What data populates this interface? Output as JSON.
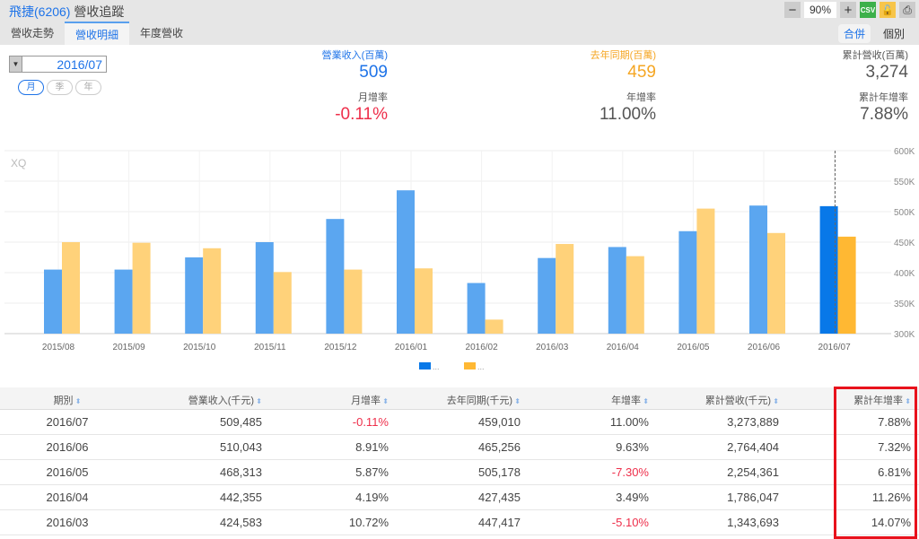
{
  "header": {
    "company": "飛捷(6206)",
    "title": "營收追蹤",
    "zoom": "90%",
    "csv": "CSV"
  },
  "tabs": [
    {
      "label": "營收走勢"
    },
    {
      "label": "營收明細"
    },
    {
      "label": "年度營收"
    }
  ],
  "toggle": {
    "merged": "合併",
    "individual": "個別"
  },
  "date": "2016/07",
  "periods": [
    "月",
    "季",
    "年"
  ],
  "stats": {
    "revenue": {
      "label": "營業收入(百萬)",
      "value": "509",
      "color": "#1e73e8"
    },
    "mom": {
      "label": "月增率",
      "value": "-0.11%",
      "color": "#ee2e4a"
    },
    "lastyear": {
      "label": "去年同期(百萬)",
      "value": "459",
      "color": "#f5a623"
    },
    "yoy": {
      "label": "年增率",
      "value": "11.00%",
      "color": "#555555"
    },
    "cum": {
      "label": "累計營收(百萬)",
      "value": "3,274",
      "color": "#555555"
    },
    "cumyoy": {
      "label": "累計年增率",
      "value": "7.88%",
      "color": "#555555"
    }
  },
  "chart_data": {
    "type": "bar",
    "watermark": "XQ",
    "categories": [
      "2015/08",
      "2015/09",
      "2015/10",
      "2015/11",
      "2015/12",
      "2016/01",
      "2016/02",
      "2016/03",
      "2016/04",
      "2016/05",
      "2016/06",
      "2016/07"
    ],
    "series": [
      {
        "name": "...",
        "color": "#5ba6f0",
        "highlight": "#0878e8",
        "values": [
          405,
          405,
          425,
          450,
          488,
          535,
          383,
          424,
          442,
          468,
          510,
          509
        ]
      },
      {
        "name": "...",
        "color": "#ffd27a",
        "highlight": "#ffb833",
        "values": [
          450,
          449,
          440,
          401,
          405,
          407,
          323,
          447,
          427,
          505,
          465,
          459
        ]
      }
    ],
    "yticks": [
      "300K",
      "350K",
      "400K",
      "450K",
      "500K",
      "550K",
      "600K"
    ],
    "ylim": [
      300,
      600
    ],
    "unit": "K"
  },
  "table": {
    "headers": [
      "期別",
      "營業收入(千元)",
      "月增率",
      "去年同期(千元)",
      "年增率",
      "累計營收(千元)",
      "累計年增率"
    ],
    "rows": [
      [
        "2016/07",
        "509,485",
        "-0.11%",
        "459,010",
        "11.00%",
        "3,273,889",
        "7.88%"
      ],
      [
        "2016/06",
        "510,043",
        "8.91%",
        "465,256",
        "9.63%",
        "2,764,404",
        "7.32%"
      ],
      [
        "2016/05",
        "468,313",
        "5.87%",
        "505,178",
        "-7.30%",
        "2,254,361",
        "6.81%"
      ],
      [
        "2016/04",
        "442,355",
        "4.19%",
        "427,435",
        "3.49%",
        "1,786,047",
        "11.26%"
      ],
      [
        "2016/03",
        "424,583",
        "10.72%",
        "447,417",
        "-5.10%",
        "1,343,693",
        "14.07%"
      ]
    ]
  }
}
